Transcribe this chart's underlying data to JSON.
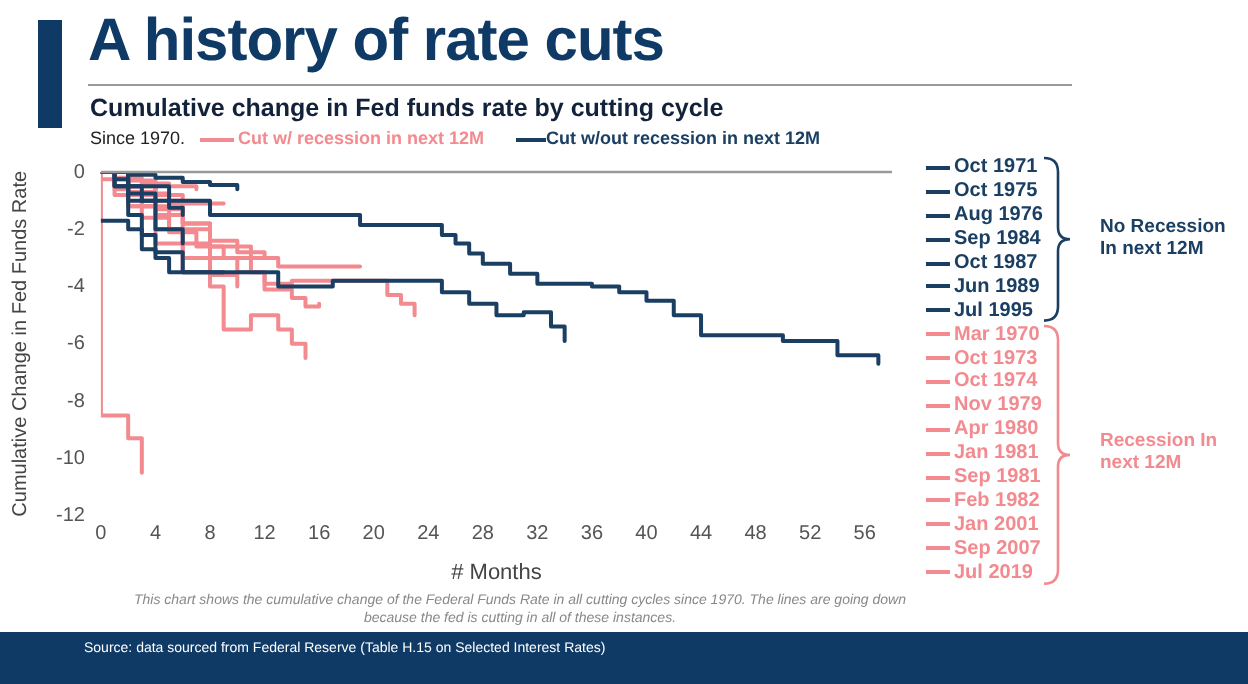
{
  "chart_data": {
    "type": "step",
    "title": "A history of rate cuts",
    "subtitle": "Cumulative change in Fed funds rate by cutting cycle",
    "xlabel": "# Months",
    "ylabel": "Cumulative Change in Fed Funds Rate",
    "xlim": [
      0,
      58
    ],
    "xticks": [
      0,
      4,
      8,
      12,
      16,
      20,
      24,
      28,
      32,
      36,
      40,
      44,
      48,
      52,
      56
    ],
    "ylim": [
      -12,
      0
    ],
    "yticks": [
      -12,
      -10,
      -8,
      -6,
      -4,
      -2,
      0
    ],
    "legend": "right",
    "marker": "none",
    "line_style": "solid",
    "annotations": [
      "Since 1970.",
      "Cut w/ recession in next 12M",
      "Cut w/out recession in next 12M",
      "No Recession In next 12M",
      "Recession In next 12M",
      "This chart shows the cumulative change of the Federal Funds Rate in all cutting cycles since 1970. The lines are going down because the fed is cutting in all of these instances.",
      "Source: data sourced from Federal Reserve (Table H.15 on Selected Interest Rates)"
    ],
    "series": [
      {
        "name": "Oct 1971",
        "color": "#1b3f63",
        "x": [
          0,
          2,
          4,
          6,
          8,
          10
        ],
        "values": [
          0,
          -0.1,
          -0.2,
          -0.35,
          -0.45,
          -0.6
        ]
      },
      {
        "name": "Oct 1975",
        "color": "#1b3f63",
        "x": [
          0,
          1,
          2,
          3,
          4,
          5,
          6
        ],
        "values": [
          0,
          -0.25,
          -0.5,
          -0.75,
          -1.0,
          -1.25,
          -1.5
        ]
      },
      {
        "name": "Aug 1976",
        "color": "#1b3f63",
        "x": [
          0,
          1,
          2,
          3,
          4
        ],
        "values": [
          0,
          -0.5,
          -0.75,
          -1.0,
          -1.0
        ]
      },
      {
        "name": "Sep 1984",
        "color": "#1b3f63",
        "x": [
          0,
          1,
          2,
          3,
          4,
          5,
          6,
          9
        ],
        "values": [
          -1.7,
          -1.7,
          -2.0,
          -2.7,
          -3.0,
          -3.5,
          -3.5,
          -3.5
        ]
      },
      {
        "name": "Oct 1987",
        "color": "#1b3f63",
        "x": [
          0,
          2,
          4,
          6
        ],
        "values": [
          0,
          -1.0,
          -2.0,
          -2.5
        ]
      },
      {
        "name": "Jun 1989",
        "color": "#1b3f63",
        "x": [
          0,
          1,
          2,
          3,
          4,
          6,
          10,
          13,
          17,
          22,
          25,
          27,
          29,
          31,
          33,
          34
        ],
        "values": [
          0,
          -0.5,
          -1.5,
          -2.2,
          -2.8,
          -3.5,
          -3.5,
          -4.0,
          -3.8,
          -3.8,
          -4.2,
          -4.6,
          -5.0,
          -4.9,
          -5.4,
          -5.9
        ]
      },
      {
        "name": "Jul 1995",
        "color": "#1b3f63",
        "x": [
          0,
          2,
          5,
          8,
          19,
          25,
          26,
          27,
          28,
          30,
          32,
          36,
          38,
          40,
          42,
          44,
          50,
          54,
          57
        ],
        "values": [
          0,
          -0.5,
          -1.0,
          -1.5,
          -1.85,
          -2.2,
          -2.5,
          -2.85,
          -3.2,
          -3.55,
          -3.9,
          -4.0,
          -4.2,
          -4.5,
          -5.0,
          -5.7,
          -5.9,
          -6.4,
          -6.7
        ]
      },
      {
        "name": "Mar 1970",
        "color": "#f28a8f",
        "x": [
          0,
          1,
          3,
          5,
          7
        ],
        "values": [
          0,
          -0.2,
          -0.4,
          -0.5,
          -0.6
        ]
      },
      {
        "name": "Oct 1973",
        "color": "#f28a8f",
        "x": [
          0,
          2,
          4,
          6
        ],
        "values": [
          0,
          -0.5,
          -0.8,
          -1.0
        ]
      },
      {
        "name": "Oct 1974",
        "color": "#f28a8f",
        "x": [
          0,
          2,
          4,
          6,
          8,
          10,
          12
        ],
        "values": [
          0,
          -0.3,
          -1.0,
          -1.8,
          -2.4,
          -2.8,
          -3.0
        ]
      },
      {
        "name": "Nov 1979",
        "color": "#f28a8f",
        "x": [
          0,
          1,
          2,
          4,
          6,
          8,
          10
        ],
        "values": [
          0,
          -0.6,
          -1.2,
          -2.0,
          -3.0,
          -3.6,
          -4.0
        ]
      },
      {
        "name": "Apr 1980",
        "color": "#f28a8f",
        "x": [
          0,
          0,
          2,
          3
        ],
        "values": [
          0,
          -8.5,
          -9.3,
          -10.5
        ]
      },
      {
        "name": "Jan 1981",
        "color": "#f28a8f",
        "x": [
          0,
          2,
          4,
          6,
          8,
          10,
          12,
          14,
          15,
          16
        ],
        "values": [
          0,
          -0.8,
          -1.5,
          -2.5,
          -3.0,
          -3.5,
          -4.1,
          -4.4,
          -4.7,
          -4.6
        ]
      },
      {
        "name": "Sep 1981",
        "color": "#f28a8f",
        "x": [
          0,
          1,
          3,
          5,
          8,
          11,
          13,
          19
        ],
        "values": [
          0,
          -0.5,
          -1.2,
          -2.0,
          -2.6,
          -3.0,
          -3.3,
          -3.3
        ]
      },
      {
        "name": "Feb 1982",
        "color": "#f28a8f",
        "x": [
          0,
          2,
          4,
          6,
          8
        ],
        "values": [
          0,
          -0.7,
          -1.3,
          -1.8,
          -2.0
        ]
      },
      {
        "name": "Jan 2001",
        "color": "#f28a8f",
        "x": [
          0,
          2,
          4,
          6,
          8,
          9,
          10,
          11,
          12,
          13,
          14,
          15
        ],
        "values": [
          0,
          -1.2,
          -2.5,
          -3.5,
          -4.0,
          -5.5,
          -5.5,
          -5.0,
          -5.0,
          -5.5,
          -6.0,
          -6.5
        ]
      },
      {
        "name": "Sep 2007",
        "color": "#f28a8f",
        "x": [
          0,
          1,
          3,
          5,
          7,
          9,
          11,
          12,
          14,
          19,
          21,
          22,
          23
        ],
        "values": [
          0,
          -0.8,
          -1.6,
          -2.1,
          -2.6,
          -3.0,
          -3.5,
          -3.9,
          -3.8,
          -3.8,
          -4.3,
          -4.6,
          -5.0
        ]
      },
      {
        "name": "Jul 2019",
        "color": "#f28a8f",
        "x": [
          0,
          2,
          4,
          5,
          9
        ],
        "values": [
          -0.25,
          -0.5,
          -0.75,
          -1.1,
          -1.1
        ]
      }
    ]
  }
}
